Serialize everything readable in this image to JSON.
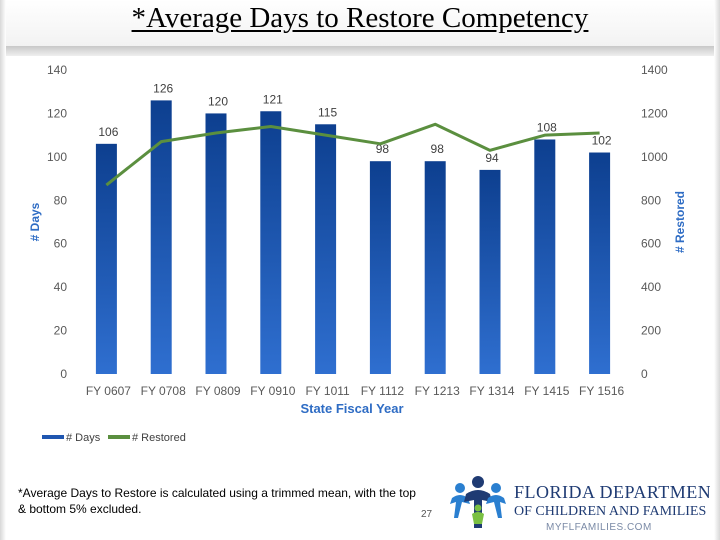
{
  "slide": {
    "title": "*Average Days to Restore Competency",
    "footnote": "*Average Days to Restore is calculated using a trimmed mean, with the top & bottom 5% excluded.",
    "page_number": "27"
  },
  "logo": {
    "line1": "FLORIDA DEPARTMENT",
    "line2": "OF CHILDREN AND FAMILIES",
    "line3": "MYFLFAMILIES.COM"
  },
  "colors": {
    "bar_dark": "#0d3f8f",
    "bar_light": "#2f6fd0",
    "line": "#5b8f3f",
    "axis_text": "#595959",
    "xlabel_color": "#2e6cc4"
  },
  "chart_data": {
    "type": "bar",
    "categories": [
      "FY 0607",
      "FY 0708",
      "FY 0809",
      "FY 0910",
      "FY 1011",
      "FY 1112",
      "FY 1213",
      "FY 1314",
      "FY 1415",
      "FY 1516"
    ],
    "series": [
      {
        "name": "# Days",
        "type": "bar",
        "axis": "left",
        "values": [
          106,
          126,
          120,
          121,
          115,
          98,
          98,
          94,
          108,
          102
        ]
      },
      {
        "name": "# Restored",
        "type": "line",
        "axis": "right",
        "values": [
          870,
          1070,
          1110,
          1140,
          1100,
          1060,
          1150,
          1030,
          1100,
          1110
        ]
      }
    ],
    "xlabel": "State Fiscal Year",
    "ylabel": "# Days",
    "y2label": "# Restored",
    "ylim": [
      0,
      140
    ],
    "y2lim": [
      0,
      1400
    ],
    "yticks": [
      0,
      20,
      40,
      60,
      80,
      100,
      120,
      140
    ],
    "y2ticks": [
      0,
      200,
      400,
      600,
      800,
      1000,
      1200,
      1400
    ],
    "data_labels": true,
    "grid": false,
    "legend": "bottom-left"
  }
}
